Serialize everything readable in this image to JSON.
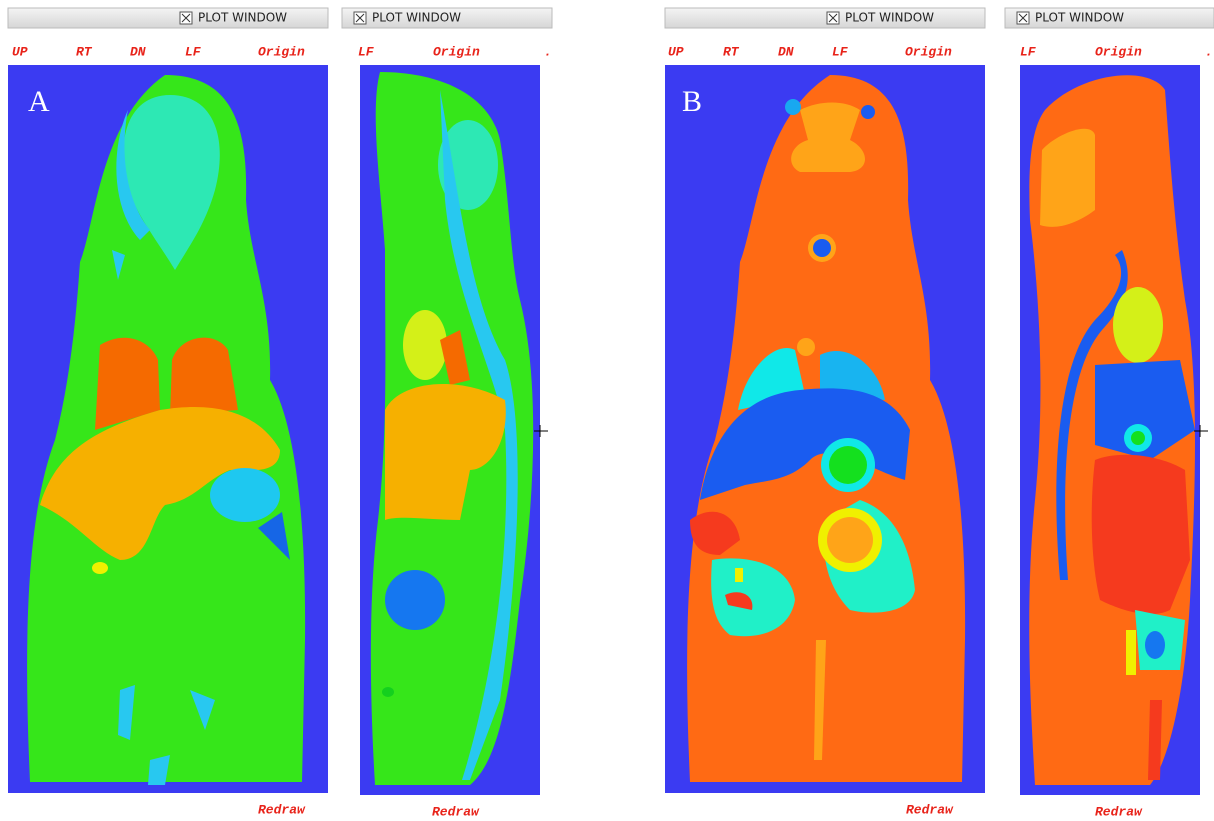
{
  "windows": [
    {
      "title": "PLOT WINDOW",
      "toolbar": [
        "UP",
        "RT",
        "DN",
        "LF",
        "Origin"
      ],
      "label": "A",
      "footer": "Redraw"
    },
    {
      "title": "PLOT WINDOW",
      "toolbar": [
        "LF",
        "Origin",
        "."
      ],
      "footer": "Redraw"
    },
    {
      "title": "PLOT WINDOW",
      "toolbar": [
        "UP",
        "RT",
        "DN",
        "LF",
        "Origin"
      ],
      "label": "B",
      "footer": "Redraw"
    },
    {
      "title": "PLOT WINDOW",
      "toolbar": [
        "LF",
        "Origin",
        "."
      ],
      "footer": "Redraw"
    }
  ]
}
